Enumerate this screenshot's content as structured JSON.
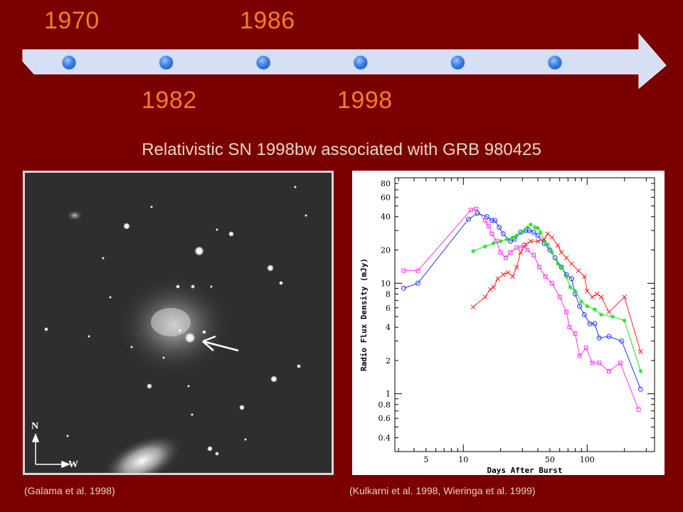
{
  "timeline": {
    "years_top": [
      "1970",
      "1986"
    ],
    "years_bottom": [
      "1982",
      "1998"
    ],
    "dot_count": 6,
    "colors": {
      "band": "#d6dff3",
      "dot": "#3f84e6",
      "year": "#f47c2c"
    }
  },
  "slide": {
    "title": "Relativistic SN 1998bw associated with GRB 980425",
    "left_caption": "(Galama et al. 1998)",
    "right_caption": "(Kulkarni et al. 1998, Wieringa et al. 1999)",
    "background": "#7a0000"
  },
  "image": {
    "description_icon": "galaxy-field-photo",
    "compass_n": "N",
    "compass_w": "W"
  },
  "chart_data": {
    "type": "line",
    "title": "",
    "xlabel": "Days After Burst",
    "ylabel": "Radio Flux Density (mJy)",
    "xscale": "log",
    "yscale": "log",
    "xlim": [
      2.8,
      350
    ],
    "ylim": [
      0.3,
      90
    ],
    "x_ticks": [
      5,
      10,
      50,
      100
    ],
    "y_ticks": [
      0.4,
      0.6,
      0.8,
      1,
      2,
      4,
      6,
      8,
      10,
      20,
      40,
      60,
      80
    ],
    "series": [
      {
        "color": "#ff33ff",
        "marker": "square",
        "x": [
          3.3,
          4.3,
          11.5,
          12.7,
          15,
          16,
          17,
          18.5,
          20,
          22,
          24,
          27,
          29,
          31,
          33,
          37,
          41,
          46,
          52,
          60,
          68,
          72,
          80,
          87,
          98,
          110,
          125,
          150,
          185,
          260
        ],
        "y": [
          13,
          13,
          46,
          47,
          37,
          33,
          28,
          24,
          19,
          17,
          19,
          21,
          21,
          22,
          20,
          18,
          14,
          11.5,
          10,
          7.5,
          5.5,
          4,
          3.5,
          2.2,
          2.6,
          1.9,
          1.9,
          1.6,
          1.9,
          0.72
        ]
      },
      {
        "color": "#2233ff",
        "marker": "circle",
        "x": [
          3.3,
          4.3,
          11,
          13,
          15.5,
          17,
          18,
          19.5,
          21,
          24,
          26,
          29,
          32,
          34,
          37,
          40,
          45,
          50,
          55,
          62,
          68,
          75,
          80,
          87,
          95,
          105,
          115,
          125,
          150,
          190,
          270
        ],
        "y": [
          9,
          10,
          38,
          43,
          40,
          37,
          37,
          32,
          28,
          24,
          25,
          29,
          30,
          30,
          29,
          27,
          23,
          20,
          17,
          14,
          12,
          11,
          8,
          6.2,
          5.2,
          4.3,
          4.3,
          3.2,
          3.3,
          3,
          1.1
        ]
      },
      {
        "color": "#22dd22",
        "marker": "star",
        "x": [
          12,
          15,
          17.5,
          20,
          22.5,
          25,
          27,
          30,
          33,
          35,
          38,
          40,
          42,
          45,
          48,
          52,
          58,
          62,
          68,
          73,
          80,
          90,
          100,
          115,
          130,
          160,
          200,
          270
        ],
        "y": [
          19.5,
          21.5,
          23,
          24,
          25,
          26,
          27,
          29,
          32,
          34,
          32,
          31.5,
          29,
          24,
          22.5,
          19,
          15,
          14,
          11.5,
          9.2,
          8.5,
          6.8,
          6.2,
          5.8,
          5.2,
          5,
          4.6,
          1.6
        ]
      },
      {
        "color": "#ff2222",
        "marker": "x",
        "x": [
          12,
          15,
          16.5,
          17.5,
          19,
          21,
          23,
          25,
          27,
          29,
          32,
          35,
          40,
          45,
          48,
          52,
          58,
          62,
          68,
          75,
          85,
          95,
          100,
          110,
          120,
          130,
          150,
          200,
          270
        ],
        "y": [
          6.1,
          7.5,
          8.8,
          9.2,
          11,
          12,
          12.5,
          11.5,
          14,
          19,
          22.5,
          24,
          24,
          25,
          28,
          26,
          22,
          19,
          17,
          15,
          13,
          11.5,
          8.5,
          7.5,
          8,
          7.5,
          5.5,
          7.5,
          2.4
        ]
      }
    ]
  }
}
